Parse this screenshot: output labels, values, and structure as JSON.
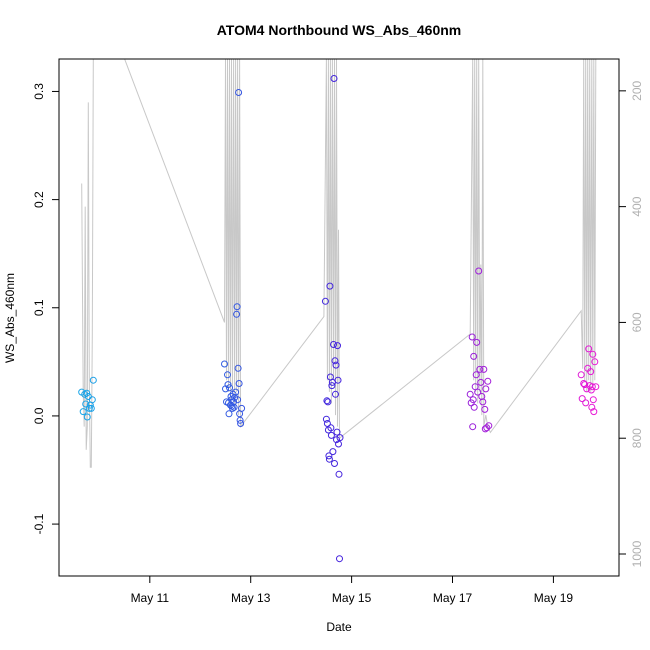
{
  "chart_data": {
    "type": "scatter",
    "title": "ATOM4 Northbound WS_Abs_460nm",
    "xlabel": "Date",
    "ylabel": "WS_Abs_460nm",
    "x_unit": "day of May",
    "xlim": [
      9.2,
      20.3
    ],
    "ylim": [
      -0.148,
      0.33
    ],
    "x_ticks": [
      {
        "value": 11,
        "label": "May 11"
      },
      {
        "value": 13,
        "label": "May 13"
      },
      {
        "value": 15,
        "label": "May 15"
      },
      {
        "value": 17,
        "label": "May 17"
      },
      {
        "value": 19,
        "label": "May 19"
      }
    ],
    "y_ticks": [
      {
        "value": -0.1,
        "label": "-0.1"
      },
      {
        "value": 0.0,
        "label": "0.0"
      },
      {
        "value": 0.1,
        "label": "0.1"
      },
      {
        "value": 0.2,
        "label": "0.2"
      },
      {
        "value": 0.3,
        "label": "0.3"
      }
    ],
    "y2_lim": [
      1038,
      145
    ],
    "y2_ticks": [
      {
        "value": 200,
        "label": "200"
      },
      {
        "value": 400,
        "label": "400"
      },
      {
        "value": 600,
        "label": "600"
      },
      {
        "value": 800,
        "label": "800"
      },
      {
        "value": 1000,
        "label": "1000"
      }
    ],
    "grid": false,
    "legend": "none",
    "colors": {
      "point_start": "#1aa6e8",
      "point_mid": "#4422dd",
      "point_end": "#e81ad6",
      "altitude_line": "#c8c8c8"
    },
    "series": [
      {
        "points": [
          [
            9.65,
            0.022
          ],
          [
            9.68,
            0.004
          ],
          [
            9.71,
            0.02
          ],
          [
            9.73,
            0.011
          ],
          [
            9.75,
            0.021
          ],
          [
            9.76,
            -0.001
          ],
          [
            9.78,
            0.018
          ],
          [
            9.8,
            0.007
          ],
          [
            9.82,
            0.01
          ],
          [
            9.84,
            0.007
          ],
          [
            9.86,
            0.015
          ],
          [
            9.88,
            0.033
          ],
          [
            12.48,
            0.048
          ],
          [
            12.5,
            0.025
          ],
          [
            12.52,
            0.013
          ],
          [
            12.54,
            0.038
          ],
          [
            12.55,
            0.029
          ],
          [
            12.56,
            0.012
          ],
          [
            12.57,
            0.002
          ],
          [
            12.58,
            0.026
          ],
          [
            12.6,
            0.01
          ],
          [
            12.61,
            0.018
          ],
          [
            12.62,
            0.015
          ],
          [
            12.63,
            0.009
          ],
          [
            12.64,
            0.007
          ],
          [
            12.65,
            0.02
          ],
          [
            12.66,
            0.013
          ],
          [
            12.67,
            0.008
          ],
          [
            12.68,
            0.017
          ],
          [
            12.7,
            0.022
          ],
          [
            12.72,
            0.094
          ],
          [
            12.73,
            0.101
          ],
          [
            12.74,
            0.015
          ],
          [
            12.75,
            0.044
          ],
          [
            12.76,
            0.299
          ],
          [
            12.77,
            0.03
          ],
          [
            12.78,
            0.002
          ],
          [
            12.79,
            -0.004
          ],
          [
            12.8,
            -0.007
          ],
          [
            12.82,
            0.007
          ],
          [
            14.48,
            0.106
          ],
          [
            14.5,
            -0.003
          ],
          [
            14.51,
            0.014
          ],
          [
            14.52,
            -0.007
          ],
          [
            14.53,
            0.013
          ],
          [
            14.54,
            -0.013
          ],
          [
            14.55,
            -0.037
          ],
          [
            14.56,
            -0.04
          ],
          [
            14.57,
            0.12
          ],
          [
            14.58,
            0.036
          ],
          [
            14.59,
            -0.011
          ],
          [
            14.6,
            -0.018
          ],
          [
            14.61,
            0.028
          ],
          [
            14.62,
            0.031
          ],
          [
            14.63,
            -0.033
          ],
          [
            14.64,
            0.066
          ],
          [
            14.65,
            0.312
          ],
          [
            14.66,
            -0.044
          ],
          [
            14.67,
            0.051
          ],
          [
            14.68,
            0.02
          ],
          [
            14.69,
            0.047
          ],
          [
            14.7,
            -0.022
          ],
          [
            14.71,
            -0.015
          ],
          [
            14.72,
            0.065
          ],
          [
            14.73,
            0.033
          ],
          [
            14.74,
            -0.026
          ],
          [
            14.75,
            -0.054
          ],
          [
            14.76,
            -0.132
          ],
          [
            14.77,
            -0.02
          ],
          [
            17.35,
            0.02
          ],
          [
            17.37,
            0.012
          ],
          [
            17.39,
            0.073
          ],
          [
            17.4,
            -0.01
          ],
          [
            17.41,
            0.015
          ],
          [
            17.42,
            0.055
          ],
          [
            17.43,
            0.008
          ],
          [
            17.45,
            0.027
          ],
          [
            17.47,
            0.038
          ],
          [
            17.48,
            0.068
          ],
          [
            17.5,
            0.022
          ],
          [
            17.52,
            0.134
          ],
          [
            17.54,
            0.043
          ],
          [
            17.56,
            0.031
          ],
          [
            17.58,
            0.018
          ],
          [
            17.6,
            0.013
          ],
          [
            17.62,
            0.043
          ],
          [
            17.64,
            0.006
          ],
          [
            17.65,
            -0.012
          ],
          [
            17.66,
            0.025
          ],
          [
            17.68,
            -0.011
          ],
          [
            17.7,
            0.032
          ],
          [
            17.72,
            -0.009
          ],
          [
            19.55,
            0.038
          ],
          [
            19.57,
            0.016
          ],
          [
            19.6,
            0.03
          ],
          [
            19.62,
            0.029
          ],
          [
            19.64,
            0.012
          ],
          [
            19.66,
            0.025
          ],
          [
            19.68,
            0.044
          ],
          [
            19.7,
            0.062
          ],
          [
            19.72,
            0.028
          ],
          [
            19.74,
            0.041
          ],
          [
            19.75,
            0.024
          ],
          [
            19.76,
            0.008
          ],
          [
            19.77,
            0.027
          ],
          [
            19.78,
            0.057
          ],
          [
            19.79,
            0.015
          ],
          [
            19.8,
            0.004
          ],
          [
            19.82,
            0.05
          ],
          [
            19.84,
            0.027
          ]
        ]
      },
      {
        "axis": "y2",
        "line": [
          [
            9.65,
            360
          ],
          [
            9.68,
            720
          ],
          [
            9.7,
            780
          ],
          [
            9.72,
            400
          ],
          [
            9.74,
            820
          ],
          [
            9.76,
            780
          ],
          [
            9.78,
            220
          ],
          [
            9.8,
            700
          ],
          [
            9.82,
            850
          ],
          [
            9.84,
            850
          ],
          [
            9.86,
            620
          ],
          [
            9.88,
            145
          ],
          [
            10.5,
            145
          ],
          [
            12.48,
            600
          ],
          [
            12.5,
            145
          ],
          [
            12.52,
            700
          ],
          [
            12.54,
            145
          ],
          [
            12.56,
            720
          ],
          [
            12.58,
            145
          ],
          [
            12.6,
            740
          ],
          [
            12.62,
            145
          ],
          [
            12.64,
            720
          ],
          [
            12.66,
            145
          ],
          [
            12.68,
            740
          ],
          [
            12.7,
            145
          ],
          [
            12.72,
            720
          ],
          [
            12.74,
            145
          ],
          [
            12.76,
            760
          ],
          [
            12.78,
            145
          ],
          [
            12.8,
            780
          ],
          [
            14.45,
            590
          ],
          [
            14.5,
            145
          ],
          [
            14.52,
            700
          ],
          [
            14.54,
            145
          ],
          [
            14.56,
            720
          ],
          [
            14.58,
            145
          ],
          [
            14.6,
            740
          ],
          [
            14.62,
            145
          ],
          [
            14.64,
            700
          ],
          [
            14.66,
            145
          ],
          [
            14.68,
            760
          ],
          [
            14.7,
            145
          ],
          [
            14.72,
            780
          ],
          [
            14.74,
            440
          ],
          [
            14.76,
            800
          ],
          [
            17.35,
            620
          ],
          [
            17.4,
            145
          ],
          [
            17.42,
            700
          ],
          [
            17.44,
            145
          ],
          [
            17.46,
            720
          ],
          [
            17.48,
            145
          ],
          [
            17.5,
            740
          ],
          [
            17.52,
            145
          ],
          [
            17.54,
            720
          ],
          [
            17.56,
            500
          ],
          [
            17.58,
            760
          ],
          [
            17.6,
            145
          ],
          [
            17.62,
            780
          ],
          [
            17.66,
            760
          ],
          [
            17.7,
            780
          ],
          [
            17.75,
            790
          ],
          [
            19.55,
            580
          ],
          [
            19.58,
            680
          ],
          [
            19.6,
            145
          ],
          [
            19.62,
            700
          ],
          [
            19.64,
            145
          ],
          [
            19.66,
            720
          ],
          [
            19.68,
            145
          ],
          [
            19.7,
            700
          ],
          [
            19.72,
            145
          ],
          [
            19.74,
            720
          ],
          [
            19.76,
            145
          ],
          [
            19.78,
            710
          ],
          [
            19.8,
            145
          ],
          [
            19.82,
            700
          ],
          [
            19.84,
            145
          ]
        ]
      }
    ]
  }
}
